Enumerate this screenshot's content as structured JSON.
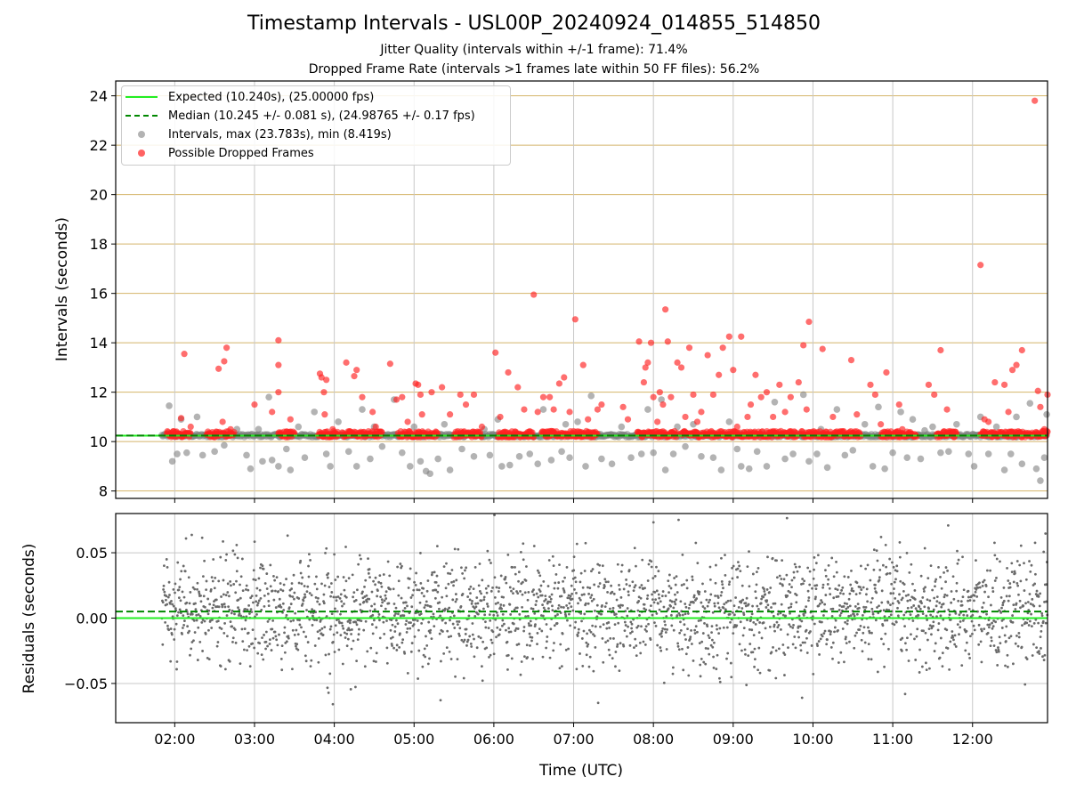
{
  "title": "Timestamp Intervals - USL00P_20240924_014855_514850",
  "subtitle_1": "Jitter Quality (intervals within +/-1 frame): 71.4%",
  "subtitle_2": "Dropped Frame Rate (intervals >1 frames late within 50 FF files): 56.2%",
  "colors": {
    "expected": "#22ee22",
    "median": "#008800",
    "intervals": "#808080",
    "dropped": "#ff2020",
    "grid_top": "#d4b56a",
    "grid_bottom": "#c8c8c8"
  },
  "legend": [
    {
      "label": "Expected (10.240s), (25.00000 fps)",
      "kind": "line-solid"
    },
    {
      "label": "Median (10.245 +/- 0.081 s), (24.98765 +/- 0.17 fps)",
      "kind": "line-dashed"
    },
    {
      "label": "Intervals, max (23.783s), min (8.419s)",
      "kind": "dot-gray"
    },
    {
      "label": "Possible Dropped Frames",
      "kind": "dot-red"
    }
  ],
  "chart_data": [
    {
      "type": "scatter",
      "ylabel": "Intervals (seconds)",
      "ylim": [
        7.7,
        24.6
      ],
      "yticks": [
        8,
        10,
        12,
        14,
        16,
        18,
        20,
        22,
        24
      ],
      "xlim_hours": [
        1.26,
        12.94
      ],
      "expected": 10.24,
      "median": 10.245,
      "baseline_start_hours": 1.84,
      "baseline_end_hours": 12.94,
      "series": [
        {
          "name": "Intervals, max (23.783s), min (8.419s)",
          "points": [
            [
              1.93,
              11.45
            ],
            [
              1.97,
              9.2
            ],
            [
              2.03,
              9.5
            ],
            [
              2.08,
              10.9
            ],
            [
              2.15,
              9.55
            ],
            [
              2.28,
              11.0
            ],
            [
              2.35,
              9.45
            ],
            [
              2.5,
              9.6
            ],
            [
              2.62,
              9.85
            ],
            [
              2.78,
              10.5
            ],
            [
              2.9,
              9.45
            ],
            [
              2.95,
              8.9
            ],
            [
              3.1,
              9.2
            ],
            [
              3.18,
              11.8
            ],
            [
              3.22,
              9.25
            ],
            [
              3.3,
              9.0
            ],
            [
              3.4,
              9.7
            ],
            [
              3.45,
              8.85
            ],
            [
              3.55,
              10.6
            ],
            [
              3.63,
              9.35
            ],
            [
              3.75,
              11.2
            ],
            [
              3.9,
              9.5
            ],
            [
              3.95,
              9.0
            ],
            [
              4.05,
              10.8
            ],
            [
              4.18,
              9.6
            ],
            [
              4.28,
              9.0
            ],
            [
              4.35,
              11.3
            ],
            [
              4.45,
              9.3
            ],
            [
              4.6,
              9.8
            ],
            [
              4.75,
              11.7
            ],
            [
              4.85,
              9.55
            ],
            [
              4.95,
              9.0
            ],
            [
              5.08,
              9.2
            ],
            [
              5.15,
              8.8
            ],
            [
              5.2,
              8.7
            ],
            [
              5.3,
              9.3
            ],
            [
              5.38,
              10.7
            ],
            [
              5.45,
              8.85
            ],
            [
              5.6,
              9.7
            ],
            [
              5.75,
              9.4
            ],
            [
              5.88,
              10.5
            ],
            [
              5.95,
              9.45
            ],
            [
              6.05,
              10.9
            ],
            [
              6.1,
              9.0
            ],
            [
              6.2,
              9.05
            ],
            [
              6.32,
              9.4
            ],
            [
              6.45,
              9.5
            ],
            [
              6.55,
              9.1
            ],
            [
              6.62,
              11.3
            ],
            [
              6.72,
              9.25
            ],
            [
              6.85,
              9.6
            ],
            [
              6.95,
              9.35
            ],
            [
              7.05,
              10.8
            ],
            [
              7.15,
              9.0
            ],
            [
              7.22,
              11.85
            ],
            [
              7.35,
              9.3
            ],
            [
              7.48,
              9.1
            ],
            [
              7.6,
              10.6
            ],
            [
              7.72,
              9.35
            ],
            [
              7.85,
              9.5
            ],
            [
              7.93,
              11.3
            ],
            [
              8.0,
              9.55
            ],
            [
              8.1,
              11.7
            ],
            [
              8.15,
              8.85
            ],
            [
              8.25,
              9.5
            ],
            [
              8.4,
              9.8
            ],
            [
              8.5,
              10.7
            ],
            [
              8.6,
              9.4
            ],
            [
              8.75,
              9.35
            ],
            [
              8.85,
              8.85
            ],
            [
              8.95,
              10.8
            ],
            [
              9.05,
              9.7
            ],
            [
              9.1,
              9.0
            ],
            [
              9.2,
              8.9
            ],
            [
              9.3,
              9.6
            ],
            [
              9.42,
              9.0
            ],
            [
              9.52,
              11.6
            ],
            [
              9.65,
              9.3
            ],
            [
              9.75,
              9.5
            ],
            [
              9.88,
              11.9
            ],
            [
              9.95,
              9.2
            ],
            [
              10.05,
              9.5
            ],
            [
              10.18,
              8.95
            ],
            [
              10.3,
              11.3
            ],
            [
              10.4,
              9.45
            ],
            [
              10.5,
              9.65
            ],
            [
              10.65,
              10.7
            ],
            [
              10.75,
              9.0
            ],
            [
              10.82,
              11.4
            ],
            [
              10.9,
              8.9
            ],
            [
              11.0,
              9.55
            ],
            [
              11.1,
              11.2
            ],
            [
              11.18,
              9.35
            ],
            [
              11.25,
              10.9
            ],
            [
              11.35,
              9.3
            ],
            [
              11.5,
              10.6
            ],
            [
              11.6,
              9.55
            ],
            [
              11.7,
              9.6
            ],
            [
              11.8,
              10.7
            ],
            [
              11.95,
              9.5
            ],
            [
              12.02,
              9.0
            ],
            [
              12.1,
              11.0
            ],
            [
              12.2,
              9.5
            ],
            [
              12.3,
              10.6
            ],
            [
              12.4,
              8.85
            ],
            [
              12.48,
              9.5
            ],
            [
              12.55,
              11.0
            ],
            [
              12.62,
              9.1
            ],
            [
              12.72,
              11.55
            ],
            [
              12.8,
              8.9
            ],
            [
              12.85,
              8.42
            ],
            [
              12.9,
              9.35
            ],
            [
              12.93,
              11.1
            ],
            [
              3.05,
              10.5
            ],
            [
              5.0,
              10.6
            ],
            [
              6.9,
              10.7
            ],
            [
              8.3,
              10.6
            ],
            [
              10.1,
              10.5
            ],
            [
              11.4,
              10.45
            ],
            [
              4.5,
              10.6
            ]
          ]
        },
        {
          "name": "Possible Dropped Frames",
          "points": [
            [
              2.12,
              13.55
            ],
            [
              2.08,
              10.95
            ],
            [
              2.2,
              10.6
            ],
            [
              2.55,
              12.95
            ],
            [
              2.62,
              13.25
            ],
            [
              2.65,
              13.8
            ],
            [
              2.6,
              10.8
            ],
            [
              2.7,
              10.5
            ],
            [
              3.0,
              11.5
            ],
            [
              3.22,
              11.2
            ],
            [
              3.3,
              12.0
            ],
            [
              3.3,
              13.1
            ],
            [
              3.3,
              14.1
            ],
            [
              3.4,
              10.4
            ],
            [
              3.45,
              10.9
            ],
            [
              3.82,
              12.75
            ],
            [
              3.84,
              12.6
            ],
            [
              3.87,
              12.0
            ],
            [
              3.88,
              11.1
            ],
            [
              3.9,
              12.5
            ],
            [
              3.98,
              10.5
            ],
            [
              4.15,
              13.2
            ],
            [
              4.28,
              12.9
            ],
            [
              4.25,
              12.65
            ],
            [
              4.35,
              11.8
            ],
            [
              4.48,
              11.2
            ],
            [
              4.52,
              10.6
            ],
            [
              4.7,
              13.15
            ],
            [
              4.78,
              11.7
            ],
            [
              4.85,
              11.8
            ],
            [
              4.92,
              10.8
            ],
            [
              5.02,
              12.35
            ],
            [
              5.05,
              12.3
            ],
            [
              5.08,
              11.9
            ],
            [
              5.1,
              11.1
            ],
            [
              5.22,
              12.0
            ],
            [
              5.35,
              12.2
            ],
            [
              5.45,
              11.1
            ],
            [
              5.58,
              11.9
            ],
            [
              5.65,
              11.5
            ],
            [
              5.75,
              11.9
            ],
            [
              5.85,
              10.6
            ],
            [
              6.02,
              13.6
            ],
            [
              6.08,
              11.0
            ],
            [
              6.18,
              12.8
            ],
            [
              6.3,
              12.2
            ],
            [
              6.38,
              11.3
            ],
            [
              6.5,
              15.95
            ],
            [
              6.55,
              11.2
            ],
            [
              6.62,
              11.8
            ],
            [
              6.7,
              11.8
            ],
            [
              6.75,
              11.3
            ],
            [
              6.82,
              12.35
            ],
            [
              6.88,
              12.6
            ],
            [
              6.95,
              11.2
            ],
            [
              7.02,
              14.95
            ],
            [
              7.12,
              13.1
            ],
            [
              7.18,
              10.9
            ],
            [
              7.3,
              11.3
            ],
            [
              7.35,
              11.5
            ],
            [
              7.62,
              11.4
            ],
            [
              7.68,
              10.9
            ],
            [
              7.82,
              14.05
            ],
            [
              7.88,
              12.4
            ],
            [
              7.9,
              13.0
            ],
            [
              7.93,
              13.2
            ],
            [
              7.97,
              14.0
            ],
            [
              8.0,
              11.8
            ],
            [
              8.05,
              10.8
            ],
            [
              8.08,
              12.0
            ],
            [
              8.12,
              11.5
            ],
            [
              8.15,
              15.35
            ],
            [
              8.18,
              14.05
            ],
            [
              8.22,
              11.8
            ],
            [
              8.3,
              13.2
            ],
            [
              8.35,
              13.0
            ],
            [
              8.4,
              11.0
            ],
            [
              8.45,
              13.8
            ],
            [
              8.5,
              11.9
            ],
            [
              8.55,
              10.8
            ],
            [
              8.6,
              11.2
            ],
            [
              8.68,
              13.5
            ],
            [
              8.75,
              11.9
            ],
            [
              8.82,
              12.7
            ],
            [
              8.87,
              13.8
            ],
            [
              8.95,
              14.25
            ],
            [
              9.0,
              12.9
            ],
            [
              9.05,
              10.6
            ],
            [
              9.1,
              14.25
            ],
            [
              9.18,
              11.0
            ],
            [
              9.22,
              11.5
            ],
            [
              9.28,
              12.7
            ],
            [
              9.35,
              11.8
            ],
            [
              9.42,
              12.0
            ],
            [
              9.5,
              11.0
            ],
            [
              9.58,
              12.3
            ],
            [
              9.65,
              11.2
            ],
            [
              9.72,
              11.8
            ],
            [
              9.82,
              12.4
            ],
            [
              9.88,
              13.9
            ],
            [
              9.92,
              11.3
            ],
            [
              9.95,
              14.85
            ],
            [
              10.12,
              13.75
            ],
            [
              10.25,
              11.0
            ],
            [
              10.48,
              13.3
            ],
            [
              10.55,
              11.1
            ],
            [
              10.72,
              12.3
            ],
            [
              10.78,
              11.9
            ],
            [
              10.85,
              10.7
            ],
            [
              10.92,
              12.8
            ],
            [
              11.08,
              11.5
            ],
            [
              11.12,
              10.5
            ],
            [
              11.45,
              12.3
            ],
            [
              11.52,
              11.9
            ],
            [
              11.6,
              13.7
            ],
            [
              11.68,
              11.3
            ],
            [
              11.78,
              10.4
            ],
            [
              12.1,
              17.15
            ],
            [
              12.15,
              10.9
            ],
            [
              12.2,
              10.8
            ],
            [
              12.28,
              12.4
            ],
            [
              12.4,
              12.3
            ],
            [
              12.45,
              11.2
            ],
            [
              12.5,
              12.9
            ],
            [
              12.55,
              13.1
            ],
            [
              12.62,
              13.7
            ],
            [
              12.78,
              23.8
            ],
            [
              12.82,
              12.05
            ],
            [
              12.85,
              11.4
            ],
            [
              12.9,
              10.5
            ],
            [
              12.94,
              11.9
            ]
          ]
        }
      ]
    },
    {
      "type": "scatter",
      "ylabel": "Residuals (seconds)",
      "xlabel": "Time (UTC)",
      "ylim": [
        -0.08,
        0.08
      ],
      "yticks": [
        0.05,
        0.0,
        -0.05
      ],
      "ytick_labels": [
        "0.05",
        "0.00",
        "−0.05"
      ],
      "xlim_hours": [
        1.26,
        12.94
      ],
      "xticks_hours": [
        2,
        3,
        4,
        5,
        6,
        7,
        8,
        9,
        10,
        11,
        12
      ],
      "xtick_labels": [
        "02:00",
        "03:00",
        "04:00",
        "05:00",
        "06:00",
        "07:00",
        "08:00",
        "09:00",
        "10:00",
        "11:00",
        "12:00"
      ],
      "expected": 0.0,
      "median": 0.005,
      "residual_spread": 0.035,
      "residual_range_hours": [
        1.84,
        12.94
      ]
    }
  ]
}
